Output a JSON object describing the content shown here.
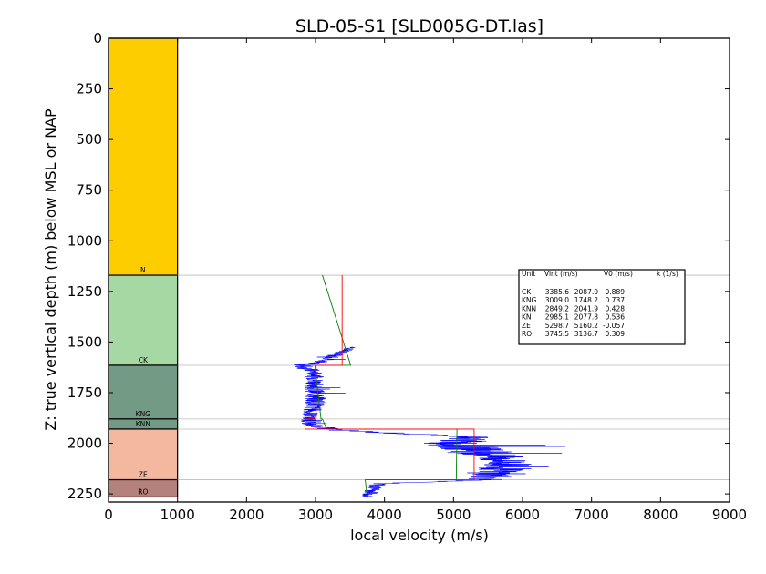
{
  "chart_data": {
    "type": "line",
    "title": "SLD-05-S1 [SLD005G-DT.las]",
    "xlabel": "local velocity (m/s)",
    "ylabel": "Z: true vertical depth (m) below MSL or NAP",
    "xlim": [
      0,
      9000
    ],
    "ylim": [
      2290,
      0
    ],
    "y_inverted": true,
    "x_ticks": [
      "0",
      "1000",
      "2000",
      "3000",
      "4000",
      "5000",
      "6000",
      "7000",
      "8000",
      "9000"
    ],
    "y_ticks": [
      "0",
      "250",
      "500",
      "750",
      "1000",
      "1250",
      "1500",
      "1750",
      "2000",
      "2250"
    ],
    "formations": [
      {
        "label": "N",
        "top": 0,
        "bottom": 1170,
        "color": "#fecd00"
      },
      {
        "label": "CK",
        "top": 1170,
        "bottom": 1615,
        "color": "#a6d8a3"
      },
      {
        "label": "KNG",
        "top": 1615,
        "bottom": 1880,
        "color": "#739a85"
      },
      {
        "label": "KNN",
        "top": 1880,
        "bottom": 1930,
        "color": "#739a85"
      },
      {
        "label": "ZE",
        "top": 1930,
        "bottom": 2180,
        "color": "#f4b8a1"
      },
      {
        "label": "RO",
        "top": 2180,
        "bottom": 2265,
        "color": "#b5817d"
      }
    ],
    "formation_x_range": [
      0,
      1000
    ],
    "boundary_depths": [
      1170,
      1615,
      1880,
      1930,
      2180,
      2265
    ],
    "table": {
      "header": [
        "Unit",
        "Vint (m/s)",
        "V0 (m/s)",
        "k (1/s)"
      ],
      "rows": [
        [
          "CK",
          "3385.6",
          "2087.0",
          "0.889"
        ],
        [
          "KNG",
          "3009.0",
          "1748.2",
          "0.737"
        ],
        [
          "KNN",
          "2849.2",
          "2041.9",
          "0.428"
        ],
        [
          "KN",
          "2985.1",
          "2077.8",
          "0.536"
        ],
        [
          "ZE",
          "5298.7",
          "5160.2",
          "-0.057"
        ],
        [
          "RO",
          "3745.5",
          "3136.7",
          "0.309"
        ]
      ]
    },
    "series": [
      {
        "kind": "interval_velocity",
        "color": "#ff0000",
        "steps": [
          {
            "top": 1170,
            "bottom": 1615,
            "v": 3385.6
          },
          {
            "top": 1615,
            "bottom": 1880,
            "v": 3009.0
          },
          {
            "top": 1880,
            "bottom": 1930,
            "v": 2849.2
          },
          {
            "top": 1930,
            "bottom": 2180,
            "v": 5298.7
          },
          {
            "top": 2180,
            "bottom": 2265,
            "v": 3745.5
          }
        ]
      },
      {
        "kind": "linear_v0_k",
        "color": "#008000",
        "segments": [
          {
            "z0": 1170,
            "z1": 1615,
            "v0": 3100,
            "v1": 3510
          },
          {
            "z0": 1615,
            "z1": 1880,
            "v0": 2990,
            "v1": 3080
          },
          {
            "z0": 1880,
            "z1": 1930,
            "v0": 3100,
            "v1": 3160
          },
          {
            "z0": 1930,
            "z1": 2180,
            "v0": 5050,
            "v1": 5040
          },
          {
            "z0": 2180,
            "z1": 2265,
            "v0": 3720,
            "v1": 3750
          }
        ]
      },
      {
        "kind": "sonic_log",
        "color": "#0000ff",
        "profile": [
          [
            1525,
            3540,
            120
          ],
          [
            1560,
            3300,
            250
          ],
          [
            1590,
            3200,
            250
          ],
          [
            1610,
            2780,
            350
          ],
          [
            1650,
            2980,
            250
          ],
          [
            1700,
            3000,
            280
          ],
          [
            1750,
            2990,
            300
          ],
          [
            1800,
            3000,
            320
          ],
          [
            1850,
            2930,
            250
          ],
          [
            1880,
            2900,
            220
          ],
          [
            1910,
            2920,
            250
          ],
          [
            1935,
            3300,
            350
          ],
          [
            1970,
            5300,
            500
          ],
          [
            2000,
            5000,
            900
          ],
          [
            2050,
            5500,
            900
          ],
          [
            2100,
            5800,
            700
          ],
          [
            2150,
            5600,
            700
          ],
          [
            2180,
            5400,
            400
          ],
          [
            2200,
            3900,
            250
          ],
          [
            2265,
            3750,
            200
          ]
        ]
      }
    ]
  }
}
